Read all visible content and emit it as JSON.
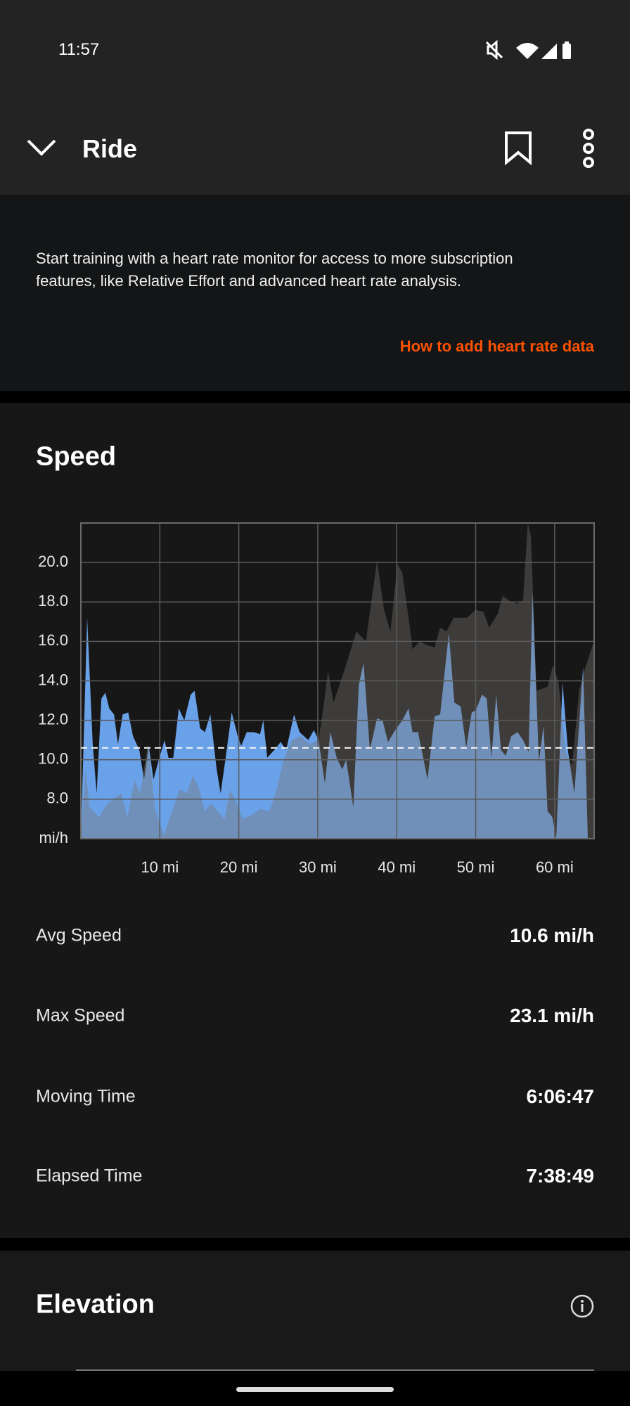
{
  "status_bar": {
    "time": "11:57"
  },
  "header": {
    "title": "Ride"
  },
  "banner": {
    "text_lines": [
      "Start training with a heart rate monitor for access to more subscription",
      "features, like Relative Effort and advanced heart rate analysis."
    ],
    "link": "How to add heart rate data"
  },
  "speed_section": {
    "title": "Speed",
    "stats": [
      {
        "label": "Avg Speed",
        "value": "10.6 mi/h"
      },
      {
        "label": "Max Speed",
        "value": "23.1 mi/h"
      },
      {
        "label": "Moving Time",
        "value": "6:06:47"
      },
      {
        "label": "Elapsed Time",
        "value": "7:38:49"
      }
    ]
  },
  "elevation_section": {
    "title": "Elevation"
  },
  "chart_data": {
    "type": "area",
    "y_label": "mi/h",
    "xlim": [
      0,
      65
    ],
    "ylim": [
      6,
      22
    ],
    "xticks": [
      {
        "value": 10,
        "label": "10 mi"
      },
      {
        "value": 20,
        "label": "20 mi"
      },
      {
        "value": 30,
        "label": "30 mi"
      },
      {
        "value": 40,
        "label": "40 mi"
      },
      {
        "value": 50,
        "label": "50 mi"
      },
      {
        "value": 60,
        "label": "60 mi"
      }
    ],
    "yticks": [
      {
        "value": 8,
        "label": "8.0"
      },
      {
        "value": 10,
        "label": "10.0"
      },
      {
        "value": 12,
        "label": "12.0"
      },
      {
        "value": 14,
        "label": "14.0"
      },
      {
        "value": 16,
        "label": "16.0"
      },
      {
        "value": 18,
        "label": "18.0"
      },
      {
        "value": 20,
        "label": "20.0"
      }
    ],
    "grid": true,
    "reference_line": 10.6,
    "series": [
      {
        "color": "#6aa2ea",
        "x": [
          0,
          0.8,
          1.5,
          2.0,
          2.6,
          3.1,
          3.6,
          4.2,
          4.7,
          5.3,
          6.0,
          6.6,
          7.4,
          8.0,
          8.6,
          9.2,
          9.8,
          10.6,
          11.1,
          11.7,
          12.4,
          13.1,
          13.9,
          14.4,
          15.1,
          15.7,
          16.4,
          17.2,
          17.7,
          18.3,
          19.1,
          19.8,
          20.3,
          21.0,
          21.9,
          22.7,
          23.1,
          23.6,
          24.5,
          25.3,
          26.0,
          27.0,
          27.7,
          28.8,
          29.5,
          30.1,
          30.9,
          31.6,
          32.4,
          33.1,
          33.6,
          34.5,
          35.2,
          35.8,
          36.6,
          37.5,
          38.2,
          38.9,
          39.8,
          40.7,
          41.5,
          42.0,
          42.7,
          43.9,
          44.8,
          45.5,
          46.6,
          47.3,
          48.1,
          48.8,
          49.5,
          50.0,
          50.8,
          51.4,
          52.0,
          52.6,
          53.2,
          53.8,
          54.5,
          55.3,
          56.0,
          56.7,
          57.2,
          58.0,
          58.6,
          59.1,
          59.7,
          60.2,
          61.0,
          61.7,
          62.5,
          63.6,
          64.2
        ],
        "values": [
          6,
          17.2,
          10.8,
          8.3,
          13.1,
          13.4,
          12.6,
          12.3,
          10.8,
          12.3,
          12.4,
          11.2,
          10.5,
          9.0,
          10.7,
          9.0,
          9.9,
          11.0,
          10.1,
          10.1,
          12.6,
          12.0,
          13.3,
          13.5,
          11.6,
          11.4,
          12.3,
          9.5,
          8.3,
          10.0,
          12.4,
          11.3,
          10.7,
          11.4,
          11.4,
          11.3,
          12.0,
          10.1,
          10.5,
          10.9,
          10.5,
          12.3,
          11.4,
          11.0,
          11.5,
          11.0,
          8.8,
          11.4,
          10.1,
          9.5,
          10.0,
          7.6,
          13.8,
          14.9,
          10.5,
          12.1,
          12.0,
          10.9,
          11.5,
          12.0,
          12.6,
          11.4,
          11.4,
          9.0,
          12.2,
          12.3,
          16.4,
          12.9,
          12.7,
          10.6,
          12.4,
          12.5,
          13.3,
          13.1,
          10.1,
          13.3,
          10.5,
          10.2,
          11.2,
          11.4,
          11.0,
          10.4,
          18.5,
          9.9,
          11.7,
          7.4,
          7.1,
          6.0,
          13.9,
          10.4,
          8.3,
          14.7,
          6.0
        ]
      },
      {
        "color": "rgba(122,117,112,0.4)",
        "x": [
          0,
          0.6,
          1.1,
          2.3,
          3.4,
          5.1,
          5.9,
          6.8,
          7.5,
          8.5,
          9.4,
          10.5,
          11.4,
          12.5,
          13.4,
          14.2,
          15.0,
          15.7,
          16.5,
          17.3,
          18.2,
          18.9,
          19.7,
          20.5,
          21.6,
          22.7,
          23.9,
          24.8,
          25.6,
          26.7,
          27.8,
          29.0,
          30.1,
          30.7,
          31.3,
          32.0,
          33.5,
          34.9,
          36.1,
          37.5,
          38.4,
          39.2,
          40.1,
          40.7,
          41.5,
          42.0,
          42.9,
          43.9,
          44.8,
          45.5,
          46.3,
          47.2,
          48.9,
          50.0,
          51.0,
          51.7,
          52.8,
          53.4,
          54.5,
          55.3,
          56.0,
          56.6,
          57.0,
          57.7,
          59.1,
          59.8,
          60.5,
          61.4,
          62.2,
          63.1,
          63.9,
          65.0
        ],
        "values": [
          6,
          9.5,
          7.6,
          7.1,
          7.8,
          8.3,
          7.1,
          9.0,
          8.3,
          10.8,
          7.5,
          6.2,
          7.2,
          8.5,
          8.3,
          9.2,
          8.5,
          7.4,
          7.8,
          7.4,
          7.0,
          8.5,
          7.8,
          7.0,
          7.2,
          7.5,
          7.4,
          8.5,
          9.9,
          11.0,
          11.2,
          10.8,
          11.0,
          12.6,
          14.5,
          12.9,
          14.7,
          16.5,
          16.0,
          20.1,
          17.6,
          16.5,
          19.9,
          19.5,
          17.2,
          15.6,
          16.0,
          15.8,
          15.7,
          16.7,
          16.5,
          17.2,
          17.2,
          17.6,
          17.5,
          16.7,
          17.4,
          18.3,
          18.0,
          17.9,
          18.1,
          22.0,
          21.3,
          13.5,
          13.7,
          14.8,
          13.9,
          10.4,
          9.7,
          13.5,
          14.7,
          16.0
        ]
      }
    ]
  }
}
